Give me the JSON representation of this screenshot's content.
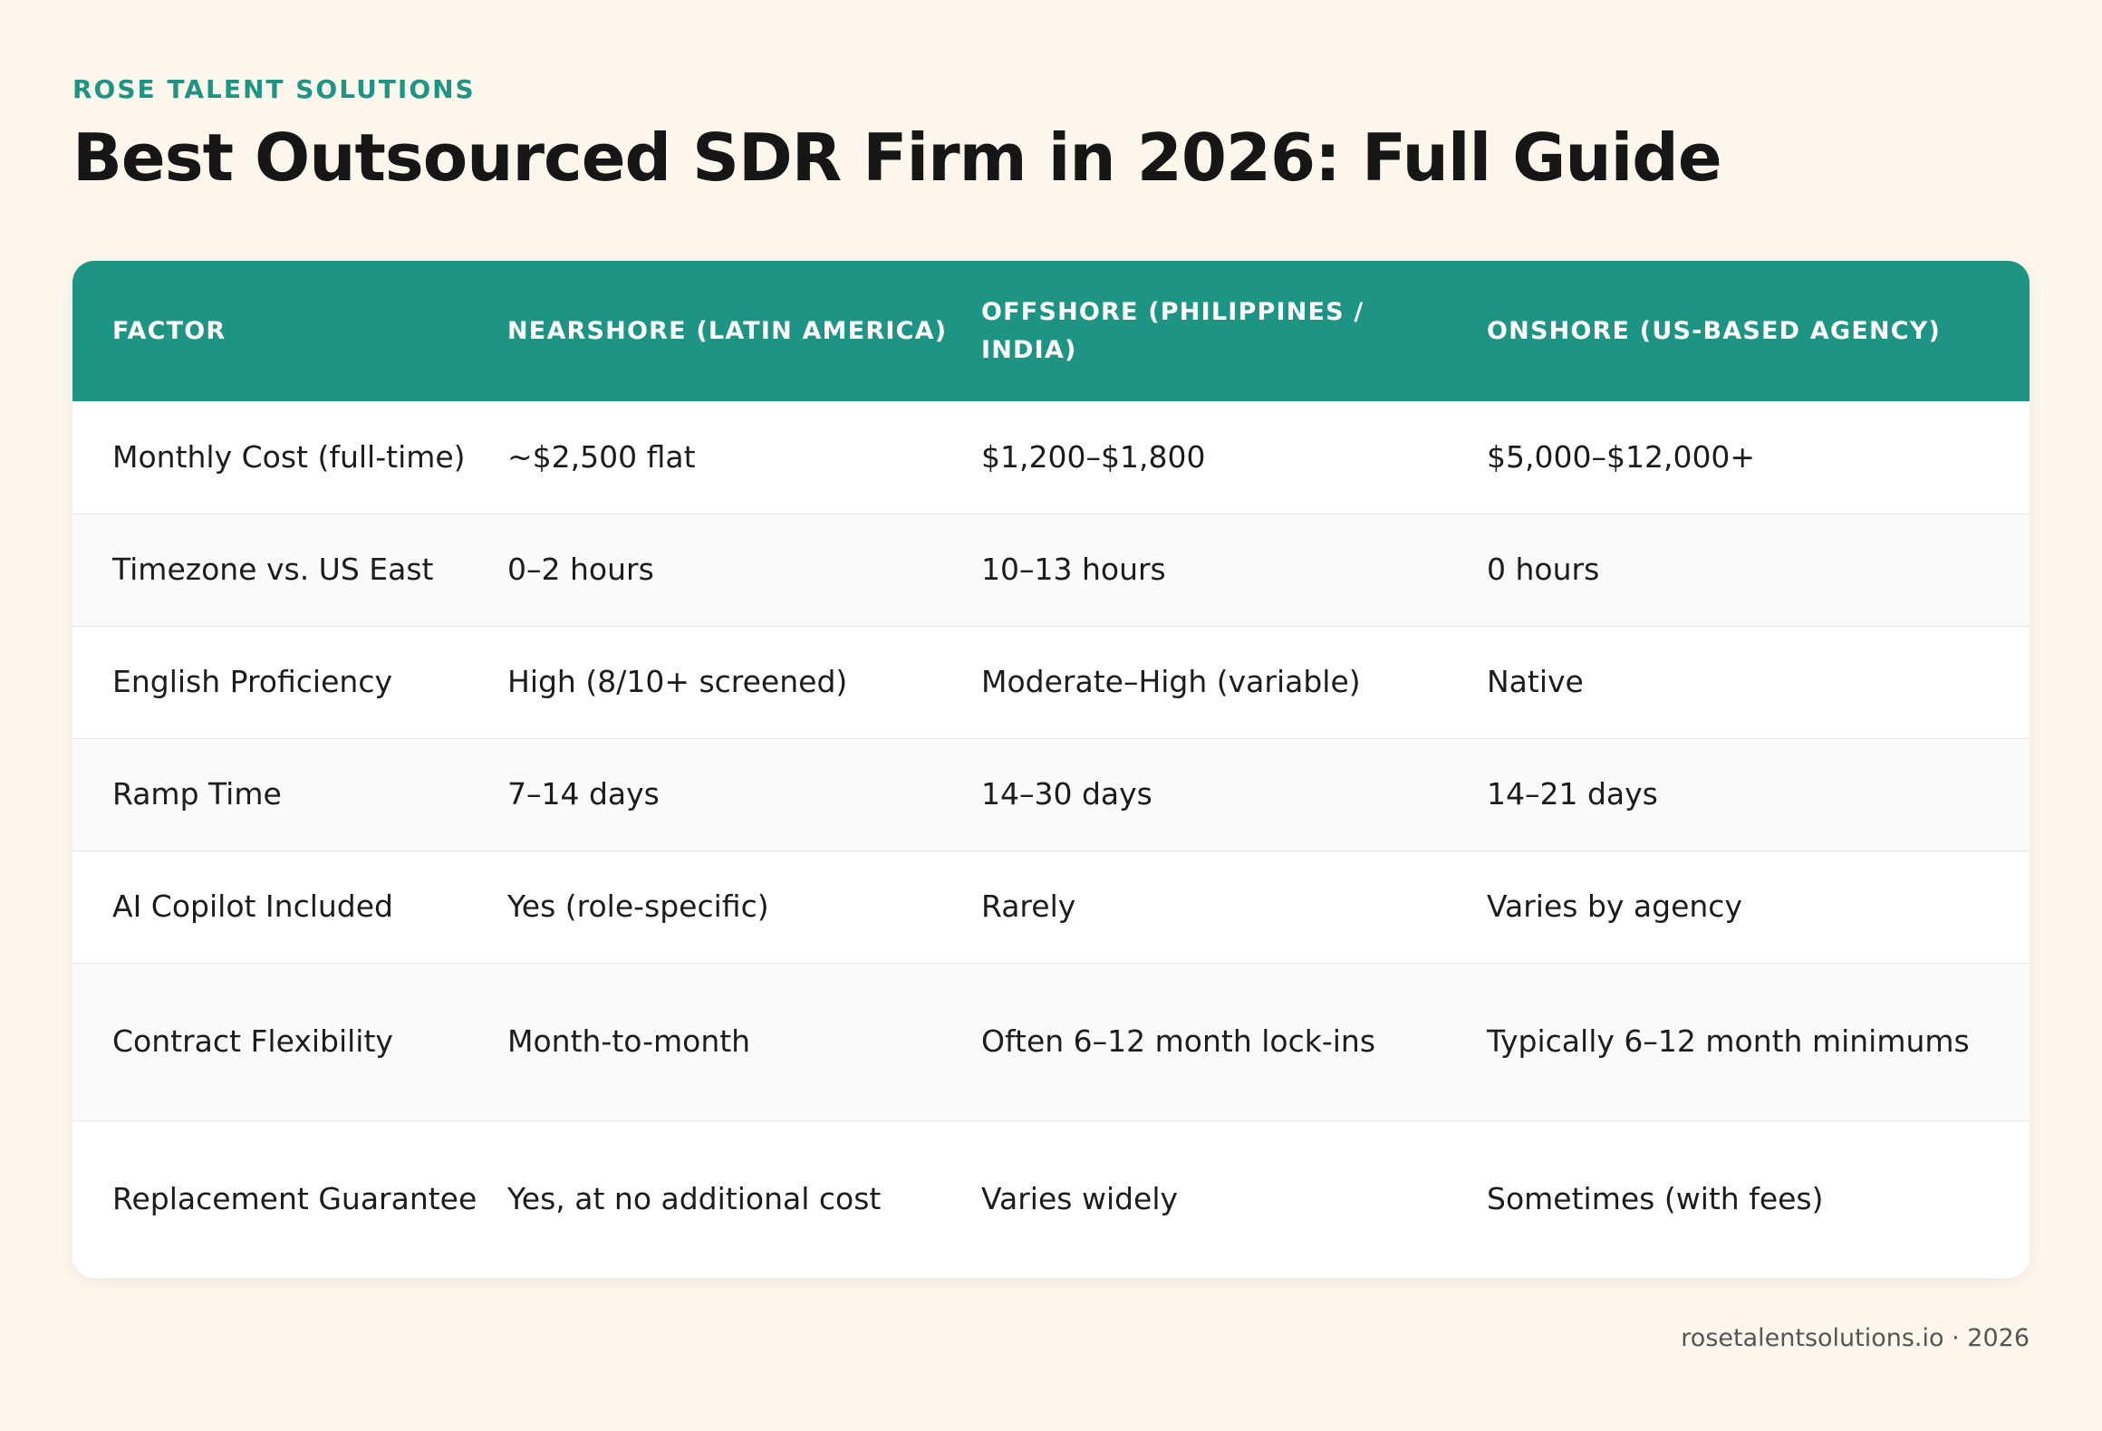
{
  "brand": "ROSE TALENT SOLUTIONS",
  "title": "Best Outsourced SDR Firm in 2026: Full Guide",
  "table": {
    "headers": [
      "FACTOR",
      "NEARSHORE (LATIN AMERICA)",
      "OFFSHORE (PHILIPPINES / INDIA)",
      "ONSHORE (US-BASED AGENCY)"
    ],
    "rows": [
      [
        "Monthly Cost (full-time)",
        "~$2,500 flat",
        "$1,200–$1,800",
        "$5,000–$12,000+"
      ],
      [
        "Timezone vs. US East",
        "0–2 hours",
        "10–13 hours",
        "0 hours"
      ],
      [
        "English Proficiency",
        "High (8/10+ screened)",
        "Moderate–High (variable)",
        "Native"
      ],
      [
        "Ramp Time",
        "7–14 days",
        "14–30 days",
        "14–21 days"
      ],
      [
        "AI Copilot Included",
        "Yes (role-specific)",
        "Rarely",
        "Varies by agency"
      ],
      [
        "Contract Flexibility",
        "Month-to-month",
        "Often 6–12 month lock-ins",
        "Typically 6–12 month minimums"
      ],
      [
        "Replacement Guarantee",
        "Yes, at no additional cost",
        "Varies widely",
        "Sometimes (with fees)"
      ]
    ]
  },
  "footer": "rosetalentsolutions.io · 2026",
  "colors": {
    "accent": "#1e9484",
    "background": "#fdf6ec"
  }
}
